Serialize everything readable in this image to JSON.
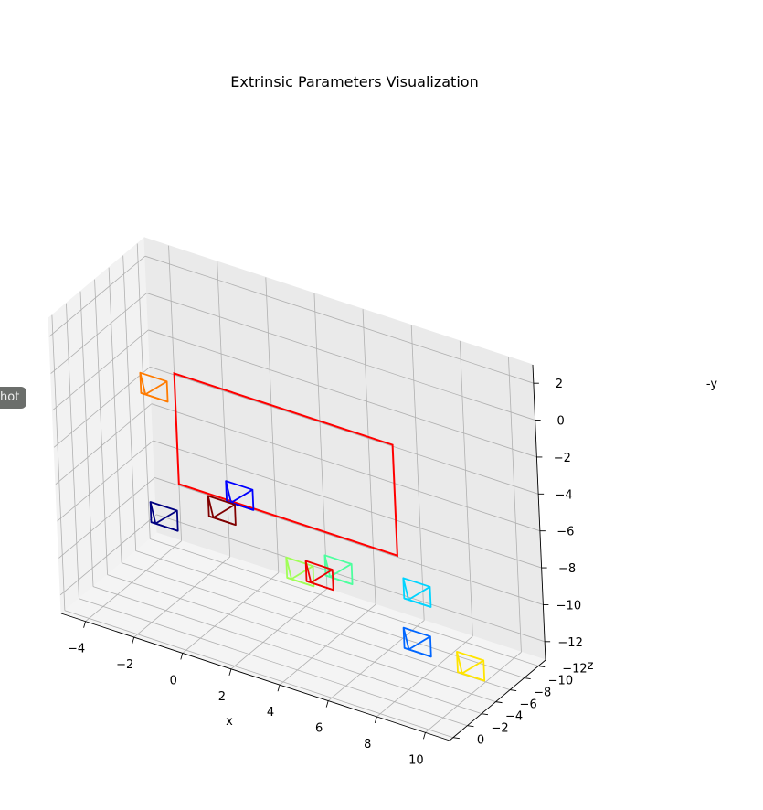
{
  "side_tag": "hot",
  "chart_data": {
    "type": "3d-wireframe",
    "title": "Extrinsic Parameters Visualization",
    "xlabel": "x",
    "ylabel": "z",
    "zlabel": "-y",
    "xlim": [
      -5,
      11
    ],
    "ylim": [
      -13,
      0.5
    ],
    "zlim": [
      -13,
      3
    ],
    "x_ticks": [
      -4,
      -2,
      0,
      2,
      4,
      6,
      8,
      10
    ],
    "y_ticks": [
      0,
      -2,
      -4,
      -6,
      -8,
      -10,
      -12
    ],
    "z_ticks": [
      2,
      0,
      -2,
      -4,
      -6,
      -8,
      -10,
      -12
    ],
    "grid": true,
    "board": {
      "color": "#ff0000",
      "corners": [
        [
          0,
          0,
          2
        ],
        [
          9,
          0,
          2
        ],
        [
          9,
          0,
          -4
        ],
        [
          0,
          0,
          -4
        ]
      ]
    },
    "cameras": [
      {
        "color": "#000080",
        "center": [
          -2.0,
          -4.0,
          -8.0
        ]
      },
      {
        "color": "#0000ff",
        "center": [
          -0.5,
          -9.5,
          -8.0
        ]
      },
      {
        "color": "#0066ff",
        "center": [
          8.6,
          -3.2,
          -10.0
        ]
      },
      {
        "color": "#00d4ff",
        "center": [
          9.2,
          -1.5,
          -6.5
        ]
      },
      {
        "color": "#4dff9e",
        "center": [
          3.5,
          -9.5,
          -10.3
        ]
      },
      {
        "color": "#a0ff57",
        "center": [
          2.5,
          -7.5,
          -10.2
        ]
      },
      {
        "color": "#ffe400",
        "center": [
          9.0,
          -9.0,
          -13.0
        ]
      },
      {
        "color": "#ff7b00",
        "center": [
          -4.5,
          -11.5,
          -4.5
        ]
      },
      {
        "color": "#ee0000",
        "center": [
          3.0,
          -8.5,
          -10.5
        ]
      },
      {
        "color": "#800000",
        "center": [
          -0.5,
          -7.0,
          -8.0
        ]
      }
    ]
  }
}
